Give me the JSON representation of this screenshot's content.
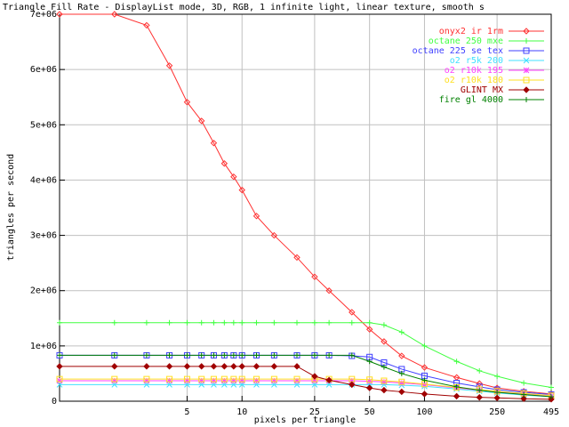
{
  "chart_data": {
    "type": "line",
    "title": "Triangle Fill Rate - DisplayList mode, 3D, RGB, 1 infinite light, linear texture, smooth s",
    "xlabel": "pixels per triangle",
    "ylabel": "triangles per second",
    "xscale": "log",
    "grid": true,
    "legend": "top-right",
    "xlim": [
      1,
      495
    ],
    "xticks": [
      5,
      10,
      25,
      50,
      100,
      250,
      495
    ],
    "ylim": [
      0,
      7000000
    ],
    "yticks": [
      0,
      {
        "value": 1000000,
        "label": "1e+06"
      },
      {
        "value": 2000000,
        "label": "2e+06"
      },
      {
        "value": 3000000,
        "label": "3e+06"
      },
      {
        "value": 4000000,
        "label": "4e+06"
      },
      {
        "value": 5000000,
        "label": "5e+06"
      },
      {
        "value": 6000000,
        "label": "6e+06"
      },
      {
        "value": 7000000,
        "label": "7e+06"
      }
    ],
    "x": [
      1,
      2,
      3,
      4,
      5,
      6,
      7,
      8,
      9,
      10,
      12,
      15,
      20,
      25,
      30,
      40,
      50,
      60,
      75,
      100,
      150,
      200,
      250,
      350,
      495
    ],
    "series": [
      {
        "name": "onyx2 ir 1rm",
        "color": "#ff3030",
        "values": [
          7000000,
          7000000,
          6800000,
          6070000,
          5410000,
          5070000,
          4670000,
          4300000,
          4060000,
          3820000,
          3350000,
          3000000,
          2600000,
          2250000,
          2000000,
          1610000,
          1300000,
          1080000,
          820000,
          610000,
          430000,
          320000,
          240000,
          180000,
          130000
        ]
      },
      {
        "name": "octane 250 mxe",
        "color": "#40ff40",
        "values": [
          1420000,
          1420000,
          1420000,
          1420000,
          1420000,
          1420000,
          1420000,
          1420000,
          1420000,
          1420000,
          1420000,
          1420000,
          1420000,
          1420000,
          1420000,
          1420000,
          1420000,
          1380000,
          1250000,
          1000000,
          720000,
          550000,
          450000,
          330000,
          250000
        ]
      },
      {
        "name": "octane 225 se tex",
        "color": "#4040ff",
        "values": [
          830000,
          830000,
          830000,
          830000,
          830000,
          830000,
          830000,
          830000,
          830000,
          830000,
          830000,
          830000,
          830000,
          830000,
          830000,
          820000,
          800000,
          700000,
          580000,
          460000,
          330000,
          260000,
          210000,
          160000,
          120000
        ]
      },
      {
        "name": "o2 r5k 200",
        "color": "#40e0ff",
        "values": [
          300000,
          300000,
          300000,
          300000,
          300000,
          300000,
          300000,
          300000,
          300000,
          300000,
          300000,
          300000,
          300000,
          300000,
          300000,
          300000,
          300000,
          300000,
          290000,
          270000,
          220000,
          180000,
          150000,
          110000,
          80000
        ]
      },
      {
        "name": "o2 r10k 195",
        "color": "#ff40ff",
        "values": [
          370000,
          370000,
          370000,
          370000,
          370000,
          370000,
          370000,
          370000,
          370000,
          370000,
          370000,
          370000,
          370000,
          370000,
          370000,
          370000,
          360000,
          350000,
          330000,
          300000,
          240000,
          200000,
          170000,
          130000,
          90000
        ]
      },
      {
        "name": "o2 r10k 180",
        "color": "#ffe020",
        "values": [
          400000,
          400000,
          400000,
          400000,
          400000,
          400000,
          400000,
          400000,
          400000,
          400000,
          400000,
          400000,
          400000,
          400000,
          400000,
          400000,
          390000,
          370000,
          350000,
          310000,
          250000,
          210000,
          180000,
          140000,
          100000
        ]
      },
      {
        "name": "GLINT MX",
        "color": "#a00000",
        "values": [
          630000,
          630000,
          630000,
          630000,
          630000,
          630000,
          630000,
          630000,
          630000,
          630000,
          630000,
          630000,
          630000,
          450000,
          380000,
          300000,
          240000,
          200000,
          170000,
          130000,
          90000,
          70000,
          60000,
          45000,
          35000
        ]
      },
      {
        "name": "fire gl 4000",
        "color": "#008000",
        "values": [
          830000,
          830000,
          830000,
          830000,
          830000,
          830000,
          830000,
          830000,
          830000,
          830000,
          830000,
          830000,
          830000,
          830000,
          830000,
          830000,
          720000,
          620000,
          500000,
          380000,
          260000,
          200000,
          160000,
          120000,
          80000
        ]
      }
    ]
  }
}
